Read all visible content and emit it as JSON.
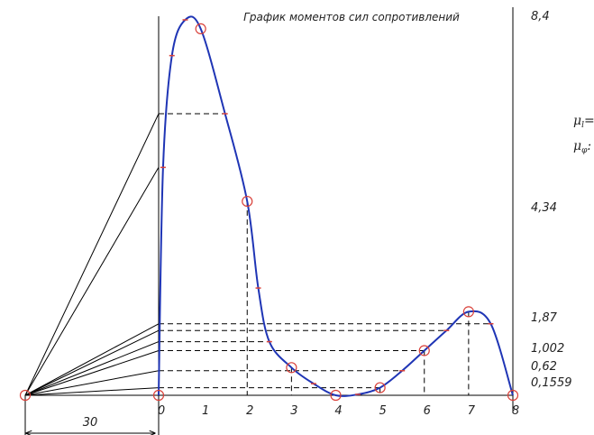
{
  "title": "График моментов сил сопротивлений",
  "x_ticks": [
    "0",
    "1",
    "2",
    "3",
    "4",
    "5",
    "6",
    "7",
    "8"
  ],
  "y_labels": [
    "8,4",
    "4,34",
    "1,87",
    "1,002",
    "0,62",
    "0,1559"
  ],
  "pole_distance": "30",
  "scale_labels": [
    "μ",
    "μ"
  ],
  "scale_subscripts": [
    "l",
    "φ"
  ],
  "scale_suffixes": [
    "=",
    ":"
  ],
  "colors": {
    "curve": "#1f35b5",
    "marker": "#d9413a",
    "line": "#000000"
  },
  "chart_data": {
    "type": "line",
    "title": "График моментов сил сопротивлений",
    "x": [
      0,
      0.1,
      0.3,
      0.6,
      0.95,
      1.5,
      2,
      2.25,
      2.5,
      3,
      3.5,
      4,
      4.5,
      5,
      5.5,
      6,
      6.5,
      7,
      7.5,
      8
    ],
    "y": [
      0,
      5.1,
      7.6,
      8.4,
      8.2,
      6.3,
      4.34,
      2.4,
      1.2,
      0.62,
      0.26,
      0.0,
      0.02,
      0.17,
      0.55,
      1.0,
      1.45,
      1.87,
      1.6,
      0.0
    ],
    "y_ticks": [
      8.4,
      4.34,
      1.87,
      1.002,
      0.62,
      0.1559
    ],
    "y_ticks_shown": [
      "8,4",
      "4,34",
      "1,87",
      "1,002",
      "0,62",
      "0,1559"
    ],
    "xlim": [
      0,
      8
    ],
    "ylim": [
      0,
      8.4
    ],
    "grid": false,
    "legend": "none"
  }
}
